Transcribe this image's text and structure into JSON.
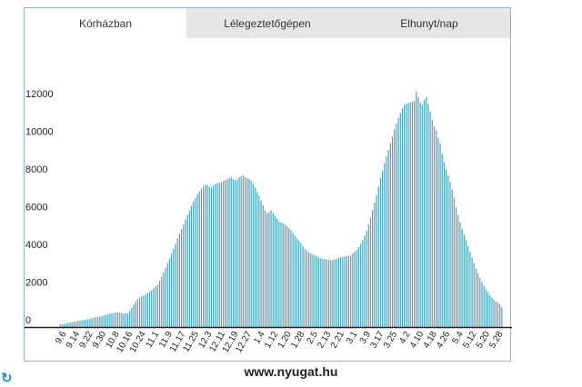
{
  "tabs": [
    {
      "label": "Kórházban",
      "active": true
    },
    {
      "label": "Lélegeztetőgépen",
      "active": false
    },
    {
      "label": "Elhunyt/nap",
      "active": false
    }
  ],
  "footer": "www.nyugat.hu",
  "colors": {
    "bar": "#4aa3bf",
    "axis": "#222222",
    "tab_inactive": "#e6e6e6",
    "refresh": "#2a8fd0"
  },
  "icons": {
    "refresh": "refresh-icon"
  },
  "chart_data": {
    "type": "bar",
    "title": "",
    "xlabel": "",
    "ylabel": "",
    "ylim": [
      0,
      13500
    ],
    "yticks": [
      0,
      2000,
      4000,
      6000,
      8000,
      10000,
      12000
    ],
    "grid": false,
    "tick_labels": [
      "9.6",
      "9.14",
      "9.22",
      "9.30",
      "10.8",
      "10.16",
      "10.24",
      "11.1",
      "11.9",
      "11.17",
      "11.25",
      "12.3",
      "12.11",
      "12.19",
      "12.27",
      "1.4",
      "1.12",
      "1.20",
      "1.28",
      "2.5",
      "2.13",
      "2.21",
      "3.1",
      "3.9",
      "3.17",
      "3.25",
      "4.2",
      "4.10",
      "4.18",
      "4.26",
      "5.4",
      "5.12",
      "5.20",
      "5.28"
    ],
    "series": [
      {
        "values": [
          130,
          150,
          180,
          200,
          220,
          240,
          260,
          285,
          300,
          320,
          340,
          360,
          380,
          400,
          420,
          450,
          470,
          500,
          520,
          540,
          560,
          590,
          620,
          640,
          680,
          700,
          720,
          750,
          770,
          790,
          760,
          740,
          730,
          720,
          700,
          860,
          1030,
          1200,
          1360,
          1480,
          1580,
          1630,
          1680,
          1750,
          1810,
          1870,
          1950,
          2050,
          2150,
          2270,
          2450,
          2670,
          2890,
          3150,
          3400,
          3650,
          3900,
          4150,
          4420,
          4700,
          4950,
          5200,
          5450,
          5700,
          5950,
          6200,
          6450,
          6650,
          6850,
          7050,
          7200,
          7350,
          7500,
          7550,
          7560,
          7450,
          7400,
          7500,
          7600,
          7650,
          7650,
          7700,
          7750,
          7800,
          7850,
          7900,
          7950,
          7850,
          7800,
          7850,
          7950,
          8000,
          8050,
          7950,
          7900,
          7850,
          7750,
          7600,
          7400,
          7200,
          6950,
          6700,
          6450,
          6200,
          6050,
          6100,
          6200,
          6050,
          5900,
          5750,
          5600,
          5550,
          5500,
          5450,
          5350,
          5250,
          5150,
          5000,
          4850,
          4700,
          4600,
          4450,
          4300,
          4150,
          4050,
          3950,
          3900,
          3850,
          3800,
          3750,
          3700,
          3650,
          3620,
          3600,
          3580,
          3560,
          3550,
          3560,
          3580,
          3620,
          3660,
          3700,
          3720,
          3740,
          3760,
          3780,
          3800,
          3900,
          4000,
          4100,
          4250,
          4400,
          4600,
          4850,
          5100,
          5450,
          5800,
          6200,
          6600,
          7000,
          7450,
          7900,
          8300,
          8700,
          9050,
          9400,
          9750,
          10100,
          10500,
          10800,
          11100,
          11350,
          11600,
          11800,
          11850,
          11900,
          11900,
          11950,
          12000,
          12500,
          12200,
          11900,
          11800,
          12050,
          12200,
          11850,
          11450,
          11000,
          10650,
          10450,
          10050,
          9750,
          9200,
          8750,
          8350,
          8050,
          7700,
          7300,
          6850,
          6350,
          5950,
          5550,
          5200,
          4900,
          4600,
          4300,
          4000,
          3700,
          3400,
          3100,
          2850,
          2600,
          2400,
          2200,
          2000,
          1850,
          1700,
          1550,
          1450,
          1350,
          1300,
          1200,
          1050
        ]
      }
    ]
  }
}
